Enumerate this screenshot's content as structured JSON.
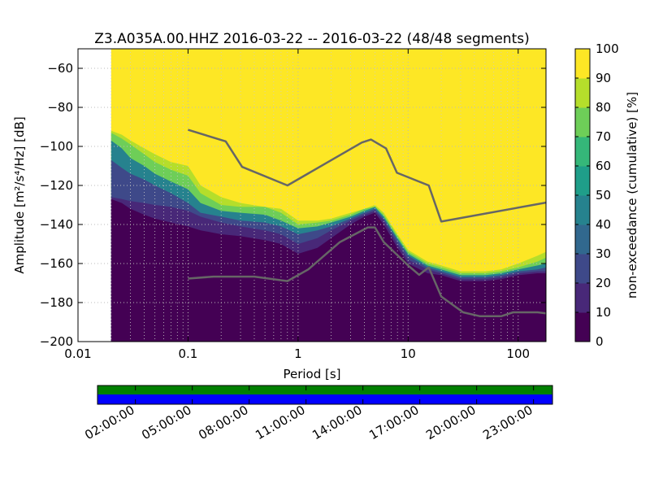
{
  "chart_data": {
    "type": "heatmap",
    "title": "Z3.A035A.00.HHZ   2016-03-22 -- 2016-03-22  (48/48 segments)",
    "xlabel": "Period [s]",
    "ylabel": "Amplitude [m²/s⁴/Hz] [dB]",
    "x_scale": "log",
    "xlim": [
      0.01,
      179
    ],
    "ylim": [
      -200,
      -50
    ],
    "x_ticks": [
      0.01,
      0.1,
      1,
      10,
      100
    ],
    "x_tick_labels": [
      "0.01",
      "0.1",
      "1",
      "10",
      "100"
    ],
    "y_ticks": [
      -60,
      -80,
      -100,
      -120,
      -140,
      -160,
      -180,
      -200
    ],
    "y_tick_labels": [
      "−60",
      "−80",
      "−100",
      "−120",
      "−140",
      "−160",
      "−180",
      "−200"
    ],
    "data_x_start": 0.02,
    "grid": true,
    "colorbar": {
      "label": "non-exceedance (cumulative) [%]",
      "range": [
        0,
        100
      ],
      "ticks": [
        0,
        10,
        20,
        30,
        40,
        50,
        60,
        70,
        80,
        90,
        100
      ],
      "colormap": "viridis"
    },
    "pdf_bands": {
      "periods": [
        0.02,
        0.025,
        0.03,
        0.04,
        0.05,
        0.07,
        0.1,
        0.13,
        0.2,
        0.3,
        0.5,
        0.7,
        1,
        1.5,
        2,
        3,
        4,
        5,
        6,
        8,
        10,
        15,
        20,
        30,
        50,
        70,
        100,
        150,
        179
      ],
      "p0": [
        -127,
        -129,
        -132,
        -135,
        -137,
        -139,
        -141,
        -143,
        -145,
        -146,
        -148,
        -150,
        -155,
        -152,
        -147,
        -140,
        -136,
        -134,
        -140,
        -152,
        -160,
        -165,
        -166,
        -169,
        -169,
        -168,
        -166,
        -165,
        -165
      ],
      "p10": [
        -126,
        -127,
        -128,
        -129,
        -130,
        -131,
        -133,
        -136,
        -139,
        -141,
        -143,
        -145,
        -150,
        -147,
        -143,
        -138,
        -135,
        -133,
        -138,
        -150,
        -158,
        -163,
        -165,
        -168,
        -168,
        -167,
        -165,
        -164,
        -164
      ],
      "p30": [
        -107,
        -111,
        -114,
        -117,
        -120,
        -124,
        -129,
        -134,
        -136,
        -138,
        -139,
        -141,
        -145,
        -143,
        -141,
        -137,
        -134,
        -132,
        -137,
        -148,
        -156,
        -162,
        -164,
        -167,
        -167,
        -166,
        -164,
        -163,
        -162
      ],
      "p60": [
        -97,
        -101,
        -106,
        -110,
        -114,
        -118,
        -122,
        -129,
        -133,
        -134,
        -135,
        -138,
        -142,
        -141,
        -139,
        -136,
        -133,
        -131,
        -136,
        -147,
        -155,
        -161,
        -163,
        -166,
        -166,
        -165,
        -163,
        -161,
        -160
      ],
      "p90": [
        -93,
        -96,
        -99,
        -104,
        -108,
        -112,
        -115,
        -124,
        -130,
        -131,
        -131,
        -134,
        -140,
        -139,
        -138,
        -135,
        -132,
        -131,
        -135,
        -146,
        -154,
        -160,
        -162,
        -165,
        -165,
        -164,
        -162,
        -159,
        -157
      ],
      "p100": [
        -92,
        -94,
        -97,
        -101,
        -104,
        -108,
        -110,
        -120,
        -126,
        -129,
        -131,
        -132,
        -138,
        -138,
        -137,
        -134,
        -132,
        -130,
        -134,
        -145,
        -153,
        -159,
        -161,
        -164,
        -164,
        -163,
        -160,
        -156,
        -154
      ]
    },
    "series": [
      {
        "color": "#666666",
        "x": [
          0.1,
          0.22,
          0.31,
          0.8,
          3.8,
          4.6,
          6.3,
          7.9,
          15.4,
          20,
          179
        ],
        "y": [
          -91.5,
          -97.4,
          -110.5,
          -120,
          -98,
          -96.5,
          -101,
          -113.5,
          -120,
          -138.5,
          -128.8
        ]
      },
      {
        "color": "#666666",
        "x": [
          0.1,
          0.17,
          0.4,
          0.8,
          1.24,
          2.4,
          4.3,
          5,
          6,
          10,
          12.6,
          15.4,
          20,
          31.6,
          45,
          70,
          90,
          150,
          179
        ],
        "y": [
          -167.7,
          -166.7,
          -166.7,
          -169,
          -163,
          -149,
          -141.5,
          -141.5,
          -149,
          -161,
          -165.8,
          -162,
          -176.9,
          -185,
          -187,
          -187,
          -185,
          -185,
          -185.5
        ]
      }
    ]
  },
  "timeline": {
    "bar_colors": [
      "#007f00",
      "#0000ff"
    ],
    "tick_labels": [
      "02:00:00",
      "05:00:00",
      "08:00:00",
      "11:00:00",
      "14:00:00",
      "17:00:00",
      "20:00:00",
      "23:00:00"
    ]
  },
  "colors": {
    "viridis": [
      "#440154",
      "#482878",
      "#3e4989",
      "#31688e",
      "#26828e",
      "#1f9e89",
      "#35b779",
      "#6ece58",
      "#b5de2b",
      "#fde725"
    ],
    "fill_top": "#fde725",
    "curve": "#666666"
  }
}
